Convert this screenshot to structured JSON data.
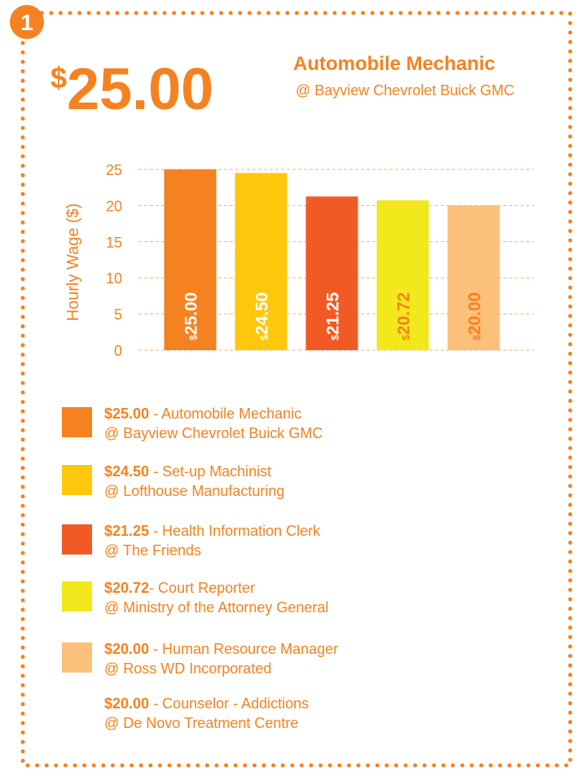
{
  "badge": "1",
  "headline": {
    "amount": "$25.00",
    "title": "Automobile Mechanic",
    "subtitle": "@ Bayview Chevrolet Buick GMC"
  },
  "chart_data": {
    "type": "bar",
    "y_label": "Hourly Wage ($)",
    "categories": [
      null,
      null,
      null,
      null,
      null
    ],
    "values": [
      25,
      24.5,
      21.25,
      20.72,
      20
    ],
    "value_labels": [
      "$25.00",
      "$24.50",
      "$21.25",
      "$20.72",
      "$20.00"
    ],
    "colors": [
      "#f58220",
      "#fdc70c",
      "#f15a24",
      "#f2e81c",
      "#fbc07a"
    ],
    "label_colors": [
      "#ffffff",
      "#ffffff",
      "#ffffff",
      "#f58220",
      "#f58220"
    ],
    "ylim": [
      0,
      25
    ],
    "yticks": [
      0,
      5,
      10,
      15,
      20,
      25
    ],
    "grid": true
  },
  "legend": [
    {
      "amount": "$25.00",
      "role": " - Automobile Mechanic",
      "employer": "@ Bayview Chevrolet Buick GMC",
      "color": "#f58220"
    },
    {
      "amount": "$24.50",
      "role": " - Set-up Machinist",
      "employer": "@ Lofthouse Manufacturing",
      "color": "#fdc70c"
    },
    {
      "amount": "$21.25",
      "role": " - Health Information Clerk",
      "employer": "@ The Friends",
      "color": "#f15a24"
    },
    {
      "amount": "$20.72",
      "role": "- Court Reporter",
      "employer": "@ Ministry of the Attorney General",
      "color": "#f2e81c"
    },
    {
      "amount": "$20.00",
      "role": " - Human Resource Manager",
      "employer": "@ Ross WD Incorporated",
      "color": "#fbc07a"
    },
    {
      "amount": "$20.00",
      "role": " - Counselor - Addictions",
      "employer": "@ De Novo Treatment Centre",
      "color": null
    }
  ]
}
